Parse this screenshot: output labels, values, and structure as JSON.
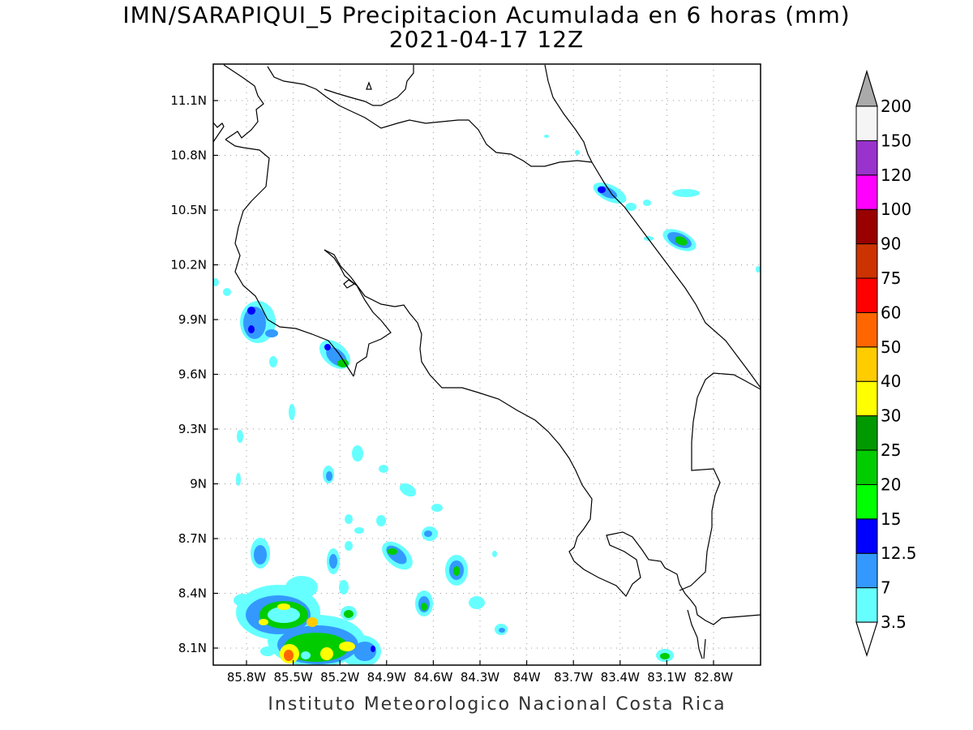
{
  "map": {
    "title": "IMN/SARAPIQUI_5 Precipitacion Acumulada en 6 horas (mm)",
    "subtitle": "2021-04-17 12Z",
    "footer": "Instituto Meteorologico Nacional Costa Rica",
    "lat_ticks": [
      "11.1N",
      "10.8N",
      "10.5N",
      "10.2N",
      "9.9N",
      "9.6N",
      "9.3N",
      "9N",
      "8.7N",
      "8.4N",
      "8.1N"
    ],
    "lon_ticks": [
      "85.8W",
      "85.5W",
      "85.2W",
      "84.9W",
      "84.6W",
      "84.3W",
      "84W",
      "83.7W",
      "83.4W",
      "83.1W",
      "82.8W"
    ],
    "grid": "dotted"
  },
  "legend": {
    "levels": [
      "3.5",
      "7",
      "12.5",
      "15",
      "20",
      "25",
      "30",
      "40",
      "50",
      "60",
      "75",
      "90",
      "100",
      "120",
      "150",
      "200"
    ],
    "colors": [
      "#66ffff",
      "#3399ff",
      "#0000ff",
      "#00ff00",
      "#00cc00",
      "#009900",
      "#ffff00",
      "#ffcc00",
      "#ff6600",
      "#ff0000",
      "#cc3300",
      "#990000",
      "#ff00ff",
      "#9933cc",
      "#f5f5f5"
    ],
    "top_arrow_color": "#aaaaaa",
    "bottom_arrow_color": "#ffffff"
  }
}
